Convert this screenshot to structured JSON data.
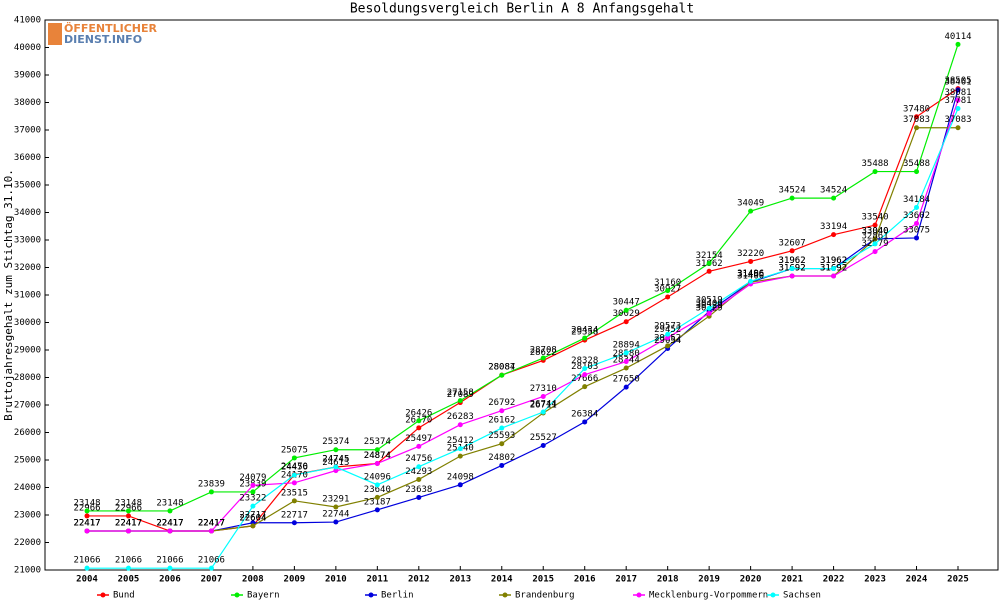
{
  "chart_data": {
    "type": "line",
    "title": "Besoldungsvergleich Berlin A 8 Anfangsgehalt",
    "y_label": "Bruttojahresgehalt zum Stichtag 31.10.",
    "logo": [
      "ÖFFENTLICHER",
      "DIENST.INFO"
    ],
    "categories": [
      "2004",
      "2005",
      "2006",
      "2007",
      "2008",
      "2009",
      "2010",
      "2011",
      "2012",
      "2013",
      "2014",
      "2015",
      "2016",
      "2017",
      "2018",
      "2019",
      "2020",
      "2021",
      "2022",
      "2023",
      "2024",
      "2025"
    ],
    "ylim": [
      21000,
      41000
    ],
    "yticks": [
      21000,
      22000,
      23000,
      24000,
      25000,
      26000,
      27000,
      28000,
      29000,
      30000,
      31000,
      32000,
      33000,
      34000,
      35000,
      36000,
      37000,
      38000,
      39000,
      40000,
      41000
    ],
    "grid": false,
    "legend": "bottom",
    "series": [
      {
        "name": "Bund",
        "color": "#ff0000",
        "values": [
          22966,
          22966,
          22417,
          22417,
          22604,
          24470,
          24745,
          24874,
          26170,
          27089,
          28087,
          28622,
          29358,
          30029,
          30927,
          31862,
          32220,
          32607,
          33194,
          33540,
          37480,
          38505
        ]
      },
      {
        "name": "Bayern",
        "color": "#00ee00",
        "values": [
          23148,
          23148,
          23148,
          23839,
          23839,
          25075,
          25374,
          25374,
          26426,
          27158,
          28084,
          28708,
          29434,
          30447,
          31160,
          32154,
          34049,
          34524,
          34524,
          35488,
          35488,
          40114
        ]
      },
      {
        "name": "Berlin",
        "color": "#0000dd",
        "values": [
          22417,
          22417,
          22417,
          22417,
          22717,
          22717,
          22744,
          23187,
          23638,
          24098,
          24802,
          25527,
          26384,
          27650,
          29054,
          30400,
          31466,
          31962,
          31962,
          33040,
          33075,
          38461
        ]
      },
      {
        "name": "Brandenburg",
        "color": "#808000",
        "values": [
          22417,
          22417,
          22417,
          22417,
          22604,
          23515,
          23291,
          23640,
          24293,
          25140,
          25593,
          26711,
          27666,
          28344,
          29152,
          30229,
          31466,
          31692,
          31692,
          33040,
          37083,
          37083
        ]
      },
      {
        "name": "Mecklenburg-Vorpommern",
        "color": "#ff00ff",
        "values": [
          22417,
          22417,
          22417,
          22417,
          24079,
          24170,
          24613,
          24874,
          25497,
          26283,
          26792,
          27310,
          28103,
          28580,
          29452,
          30329,
          31400,
          31692,
          31692,
          32579,
          33602,
          38081
        ]
      },
      {
        "name": "Sachsen",
        "color": "#00ffff",
        "values": [
          21066,
          21066,
          21066,
          21066,
          23322,
          24456,
          24745,
          24096,
          24756,
          25412,
          26162,
          26744,
          28328,
          28894,
          29573,
          30519,
          31496,
          31962,
          31962,
          32861,
          34184,
          37781
        ]
      }
    ]
  }
}
